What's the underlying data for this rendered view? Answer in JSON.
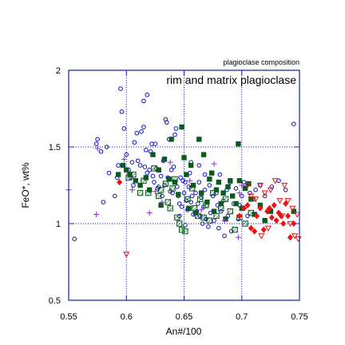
{
  "chart_data": {
    "type": "scatter",
    "corner_label": "plagioclase composition",
    "inner_title": "rim and matrix plagioclase",
    "xlabel": "An#/100",
    "ylabel": "FeO*, wt%",
    "xlim": [
      0.55,
      0.75
    ],
    "ylim": [
      0.5,
      2.0
    ],
    "xticks": [
      "0.55",
      "0.6",
      "0.65",
      "0.7",
      "0.75"
    ],
    "yticks": [
      "0.5",
      "1",
      "1.5",
      "2"
    ],
    "grid_x": [
      0.6,
      0.65,
      0.7
    ],
    "grid_y": [
      1.0,
      1.5
    ],
    "legend": "none",
    "series": [
      {
        "marker": "open-circle",
        "color": "#1010c0",
        "points": [
          [
            0.555,
            0.9
          ],
          [
            0.574,
            1.52
          ],
          [
            0.575,
            1.55
          ],
          [
            0.578,
            1.47
          ],
          [
            0.58,
            1.14
          ],
          [
            0.583,
            1.5
          ],
          [
            0.585,
            1.33
          ],
          [
            0.59,
            1.18
          ],
          [
            0.592,
            1.3
          ],
          [
            0.593,
            1.38
          ],
          [
            0.595,
            1.88
          ],
          [
            0.596,
            1.73
          ],
          [
            0.598,
            1.62
          ],
          [
            0.6,
            1.45
          ],
          [
            0.602,
            1.35
          ],
          [
            0.604,
            1.3
          ],
          [
            0.605,
            1.4
          ],
          [
            0.607,
            1.53
          ],
          [
            0.609,
            1.59
          ],
          [
            0.61,
            1.41
          ],
          [
            0.612,
            1.38
          ],
          [
            0.613,
            1.6
          ],
          [
            0.615,
            1.63
          ],
          [
            0.616,
            1.37
          ],
          [
            0.617,
            1.48
          ],
          [
            0.618,
            1.33
          ],
          [
            0.62,
            1.35
          ],
          [
            0.621,
            1.47
          ],
          [
            0.622,
            1.52
          ],
          [
            0.623,
            1.31
          ],
          [
            0.624,
            1.27
          ],
          [
            0.625,
            1.52
          ],
          [
            0.626,
            1.36
          ],
          [
            0.627,
            1.23
          ],
          [
            0.628,
            1.24
          ],
          [
            0.63,
            1.31
          ],
          [
            0.631,
            1.18
          ],
          [
            0.632,
            1.41
          ],
          [
            0.633,
            1.25
          ],
          [
            0.634,
            1.68
          ],
          [
            0.635,
            1.66
          ],
          [
            0.636,
            1.3
          ],
          [
            0.637,
            1.55
          ],
          [
            0.638,
            1.21
          ],
          [
            0.639,
            1.35
          ],
          [
            0.64,
            1.2
          ],
          [
            0.641,
            1.37
          ],
          [
            0.642,
            1.58
          ],
          [
            0.643,
            1.62
          ],
          [
            0.644,
            1.24
          ],
          [
            0.645,
            1.18
          ],
          [
            0.646,
            1.13
          ],
          [
            0.647,
            1.3
          ],
          [
            0.648,
            1.11
          ],
          [
            0.649,
            1.28
          ],
          [
            0.65,
            1.2
          ],
          [
            0.651,
            1.27
          ],
          [
            0.652,
            1.15
          ],
          [
            0.653,
            1.09
          ],
          [
            0.654,
            1.24
          ],
          [
            0.655,
            1.33
          ],
          [
            0.656,
            1.14
          ],
          [
            0.657,
            1.18
          ],
          [
            0.658,
            1.06
          ],
          [
            0.66,
            1.2
          ],
          [
            0.661,
            1.08
          ],
          [
            0.662,
            1.13
          ],
          [
            0.663,
            1.27
          ],
          [
            0.664,
            1.05
          ],
          [
            0.665,
            1.17
          ],
          [
            0.666,
            1.0
          ],
          [
            0.667,
            1.11
          ],
          [
            0.668,
            1.22
          ],
          [
            0.669,
            1.03
          ],
          [
            0.67,
            1.14
          ],
          [
            0.671,
            0.98
          ],
          [
            0.672,
            1.25
          ],
          [
            0.673,
            1.07
          ],
          [
            0.675,
            1.18
          ],
          [
            0.676,
            1.02
          ],
          [
            0.678,
            1.2
          ],
          [
            0.679,
            1.12
          ],
          [
            0.68,
            0.97
          ],
          [
            0.681,
            1.32
          ],
          [
            0.682,
            1.08
          ],
          [
            0.684,
            1.15
          ],
          [
            0.685,
            0.92
          ],
          [
            0.687,
            1.22
          ],
          [
            0.688,
            1.05
          ],
          [
            0.69,
            1.27
          ],
          [
            0.691,
            0.95
          ],
          [
            0.693,
            1.13
          ],
          [
            0.695,
            1.23
          ],
          [
            0.697,
            1.03
          ],
          [
            0.698,
            1.12
          ],
          [
            0.7,
            1.18
          ],
          [
            0.702,
            1.27
          ],
          [
            0.705,
            1.05
          ],
          [
            0.707,
            1.2
          ],
          [
            0.71,
            1.16
          ],
          [
            0.712,
            1.22
          ],
          [
            0.716,
            1.25
          ],
          [
            0.72,
            1.18
          ],
          [
            0.726,
            1.24
          ],
          [
            0.732,
            1.28
          ],
          [
            0.738,
            1.22
          ],
          [
            0.745,
            1.65
          ],
          [
            0.615,
            1.8
          ],
          [
            0.618,
            1.84
          ],
          [
            0.606,
            1.25
          ],
          [
            0.656,
            1.4
          ],
          [
            0.663,
            1.38
          ],
          [
            0.668,
            1.32
          ],
          [
            0.646,
            1.05
          ],
          [
            0.651,
            0.99
          ]
        ]
      },
      {
        "marker": "filled-square",
        "color": "#0a5a1e",
        "points": [
          [
            0.593,
            1.32
          ],
          [
            0.597,
            1.38
          ],
          [
            0.6,
            1.35
          ],
          [
            0.603,
            1.32
          ],
          [
            0.608,
            1.28
          ],
          [
            0.612,
            1.25
          ],
          [
            0.617,
            1.3
          ],
          [
            0.62,
            1.22
          ],
          [
            0.623,
            1.45
          ],
          [
            0.628,
            1.35
          ],
          [
            0.63,
            1.12
          ],
          [
            0.633,
            1.42
          ],
          [
            0.637,
            1.29
          ],
          [
            0.639,
            1.55
          ],
          [
            0.642,
            1.27
          ],
          [
            0.645,
            1.19
          ],
          [
            0.648,
            1.63
          ],
          [
            0.65,
            1.43
          ],
          [
            0.652,
            1.32
          ],
          [
            0.654,
            1.1
          ],
          [
            0.656,
            1.38
          ],
          [
            0.658,
            1.25
          ],
          [
            0.66,
            1.07
          ],
          [
            0.663,
            1.55
          ],
          [
            0.665,
            1.2
          ],
          [
            0.667,
            1.45
          ],
          [
            0.67,
            1.14
          ],
          [
            0.672,
            1.29
          ],
          [
            0.674,
            1.33
          ],
          [
            0.676,
            1.08
          ],
          [
            0.678,
            1.22
          ],
          [
            0.68,
            1.27
          ],
          [
            0.682,
            1.13
          ],
          [
            0.684,
            1.2
          ],
          [
            0.686,
            1.03
          ],
          [
            0.688,
            1.24
          ],
          [
            0.69,
            1.28
          ],
          [
            0.692,
            1.18
          ],
          [
            0.695,
            1.13
          ],
          [
            0.697,
            1.52
          ],
          [
            0.698,
            1.28
          ],
          [
            0.7,
            1.1
          ],
          [
            0.703,
            1.23
          ],
          [
            0.706,
            1.26
          ],
          [
            0.708,
            1.16
          ],
          [
            0.711,
            1.06
          ],
          [
            0.716,
            1.12
          ],
          [
            0.72,
            1.02
          ],
          [
            0.725,
            1.08
          ],
          [
            0.745,
            1.08
          ]
        ]
      },
      {
        "marker": "hatched-square",
        "color": "#0a5a1e",
        "points": [
          [
            0.602,
            1.3
          ],
          [
            0.606,
            1.32
          ],
          [
            0.612,
            1.2
          ],
          [
            0.615,
            1.28
          ],
          [
            0.619,
            1.2
          ],
          [
            0.624,
            1.36
          ],
          [
            0.628,
            1.18
          ],
          [
            0.63,
            1.22
          ],
          [
            0.634,
            1.26
          ],
          [
            0.636,
            1.14
          ],
          [
            0.638,
            1.1
          ],
          [
            0.64,
            1.23
          ],
          [
            0.642,
            1.29
          ],
          [
            0.644,
            1.04
          ],
          [
            0.646,
            1.0
          ],
          [
            0.648,
            0.96
          ],
          [
            0.651,
            0.95
          ],
          [
            0.653,
            1.16
          ],
          [
            0.657,
            1.23
          ],
          [
            0.659,
            1.1
          ],
          [
            0.662,
            1.05
          ],
          [
            0.664,
            1.16
          ],
          [
            0.667,
            1.04
          ],
          [
            0.669,
            1.12
          ],
          [
            0.672,
            1.02
          ],
          [
            0.675,
            1.2
          ],
          [
            0.678,
            1.05
          ],
          [
            0.682,
            1.1
          ],
          [
            0.686,
            1.16
          ],
          [
            0.69,
            1.08
          ],
          [
            0.694,
            0.96
          ],
          [
            0.698,
            1.04
          ],
          [
            0.703,
            1.0
          ],
          [
            0.708,
            1.07
          ]
        ]
      },
      {
        "marker": "filled-diamond",
        "color": "#ee1111",
        "points": [
          [
            0.594,
            1.27
          ],
          [
            0.698,
            1.05
          ],
          [
            0.702,
            1.1
          ],
          [
            0.705,
            1.12
          ],
          [
            0.708,
            0.97
          ],
          [
            0.711,
            0.95
          ],
          [
            0.713,
            1.05
          ],
          [
            0.716,
            1.1
          ],
          [
            0.719,
            0.96
          ],
          [
            0.722,
            1.08
          ],
          [
            0.724,
            1.1
          ],
          [
            0.726,
            1.04
          ],
          [
            0.728,
            1.12
          ],
          [
            0.73,
            1.02
          ],
          [
            0.732,
            1.07
          ],
          [
            0.734,
            1.05
          ],
          [
            0.736,
            1.0
          ],
          [
            0.738,
            1.13
          ],
          [
            0.74,
            1.05
          ],
          [
            0.742,
            0.91
          ],
          [
            0.745,
            1.0
          ]
        ]
      },
      {
        "marker": "open-triangle-down",
        "color": "#ee1111",
        "points": [
          [
            0.6,
            0.8
          ],
          [
            0.705,
            1.25
          ],
          [
            0.708,
            1.18
          ],
          [
            0.712,
            1.16
          ],
          [
            0.716,
            1.25
          ],
          [
            0.72,
            1.2
          ],
          [
            0.725,
            1.22
          ],
          [
            0.729,
            1.28
          ],
          [
            0.733,
            1.15
          ],
          [
            0.735,
            1.05
          ],
          [
            0.737,
            1.25
          ],
          [
            0.74,
            1.15
          ],
          [
            0.742,
            1.0
          ],
          [
            0.744,
            1.1
          ],
          [
            0.746,
            0.92
          ],
          [
            0.748,
            1.06
          ],
          [
            0.749,
            0.9
          ],
          [
            0.717,
            0.92
          ],
          [
            0.723,
            0.97
          ]
        ]
      },
      {
        "marker": "plus",
        "color": "#8a2be2",
        "points": [
          [
            0.55,
            1.22
          ],
          [
            0.574,
            1.06
          ],
          [
            0.575,
            1.49
          ],
          [
            0.598,
            1.42
          ],
          [
            0.605,
            1.22
          ],
          [
            0.62,
            1.07
          ],
          [
            0.625,
            1.21
          ],
          [
            0.631,
            1.14
          ],
          [
            0.638,
            1.4
          ],
          [
            0.655,
            1.28
          ],
          [
            0.665,
            1.09
          ],
          [
            0.676,
            1.39
          ],
          [
            0.685,
            1.02
          ],
          [
            0.697,
            0.91
          ],
          [
            0.698,
            1.2
          ],
          [
            0.7,
            1.25
          ]
        ]
      }
    ]
  }
}
